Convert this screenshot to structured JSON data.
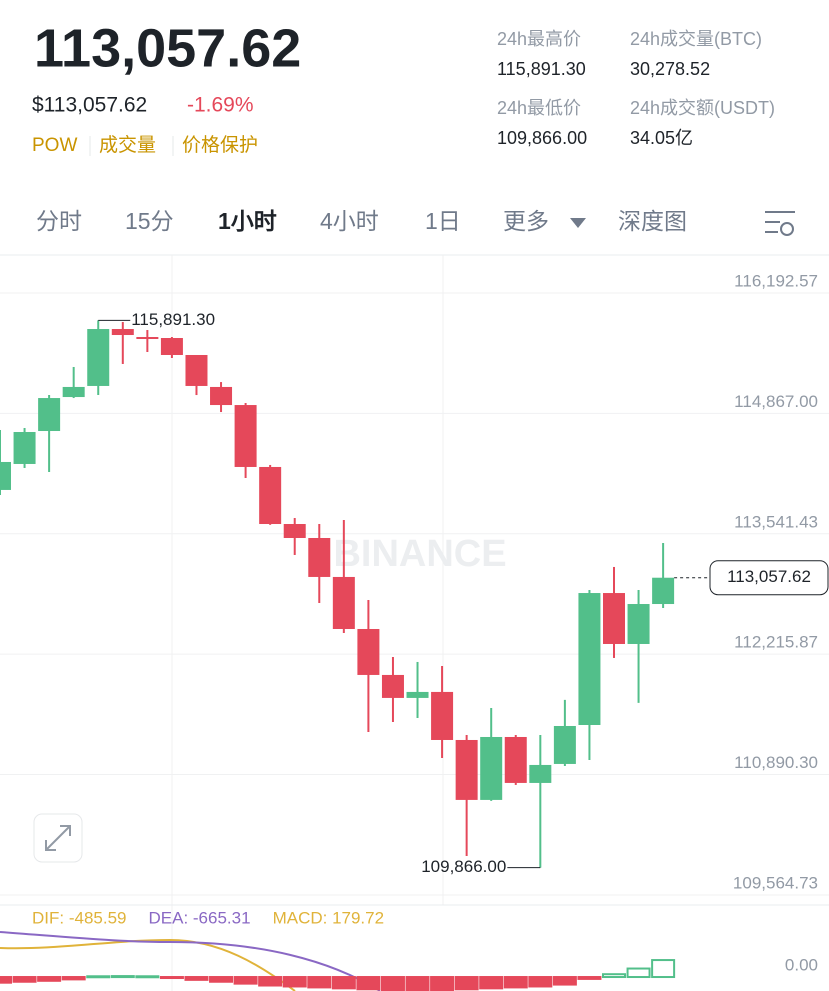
{
  "header": {
    "price": "113,057.62",
    "usd_price": "$113,057.62",
    "change": "-1.69%",
    "tags": [
      "POW",
      "成交量",
      "价格保护"
    ],
    "stats": [
      {
        "label": "24h最高价",
        "value": "115,891.30"
      },
      {
        "label": "24h成交量(BTC)",
        "value": "30,278.52"
      },
      {
        "label": "24h最低价",
        "value": "109,866.00"
      },
      {
        "label": "24h成交额(USDT)",
        "value": "34.05亿"
      }
    ]
  },
  "tabs": {
    "items": [
      "分时",
      "15分",
      "1小时",
      "4小时",
      "1日",
      "更多",
      "深度图"
    ],
    "active": 2
  },
  "chart_data": [
    {
      "type": "candlestick",
      "watermark": "BINANCE",
      "up_color": "#52bf8a",
      "down_color": "#e5485a",
      "open": [
        114024,
        114310,
        114673,
        115047,
        115169,
        115796,
        115708,
        115697,
        115510,
        115158,
        114959,
        114277,
        113649,
        113495,
        113066,
        112493,
        111987,
        111734,
        111800,
        111271,
        110611,
        111304,
        110798,
        111007,
        111436,
        112889,
        112328,
        112768
      ],
      "high": [
        114684,
        114706,
        115069,
        115378,
        115891.3,
        115873,
        115785,
        115708,
        115510,
        115212,
        114981,
        114299,
        113715,
        113649,
        113693,
        112812,
        112185,
        112130,
        112086,
        111326,
        111623,
        111326,
        111326,
        111712,
        112922,
        113176,
        112922,
        113440
      ],
      "low": [
        113969,
        114266,
        114222,
        115036,
        115069,
        115411,
        115543,
        115477,
        115069,
        114882,
        114156,
        113640,
        113308,
        112779,
        112449,
        111359,
        111469,
        111513,
        111073,
        109994,
        110600,
        110776,
        109866.0,
        110985,
        111051,
        112174,
        111679,
        112724
      ],
      "close": [
        114332,
        114662,
        115036,
        115158,
        115796,
        115730,
        115686,
        115510,
        115169,
        114959,
        114277,
        113649,
        113495,
        113066,
        112493,
        111987,
        111734,
        111800,
        111271,
        110611,
        111304,
        110798,
        110996,
        111425,
        112889,
        112328,
        112768,
        113057.62
      ],
      "ylim": [
        109454,
        116611
      ],
      "yticks": [
        {
          "value": 116192.57,
          "label": "116,192.57"
        },
        {
          "value": 114867.0,
          "label": "114,867.00"
        },
        {
          "value": 113541.43,
          "label": "113,541.43"
        },
        {
          "value": 112215.87,
          "label": "112,215.87"
        },
        {
          "value": 110890.3,
          "label": "110,890.30"
        },
        {
          "value": 109564.73,
          "label": "109,564.73"
        }
      ],
      "high_label": "115,891.30",
      "low_label": "109,866.00",
      "last_label": "113,057.62",
      "grid": true
    },
    {
      "type": "bar",
      "legend": [
        {
          "name": "DIF: -485.59",
          "color": "#e0b33a"
        },
        {
          "name": "DEA: -665.31",
          "color": "#8a68c4"
        },
        {
          "name": "MACD: 179.72",
          "color": "#e0b33a"
        }
      ],
      "up_color": "#52bf8a",
      "down_color": "#e5485a",
      "values": [
        -60,
        -50,
        -40,
        -25,
        8,
        10,
        8,
        -5,
        -30,
        -50,
        -70,
        -90,
        -100,
        -110,
        -120,
        -130,
        -140,
        -140,
        -140,
        -130,
        -120,
        -110,
        -100,
        -80,
        -20,
        30,
        90,
        179.72
      ],
      "ylim": [
        -148,
        763
      ],
      "yticks": [
        {
          "value": 0,
          "label": "0.00"
        }
      ]
    }
  ]
}
